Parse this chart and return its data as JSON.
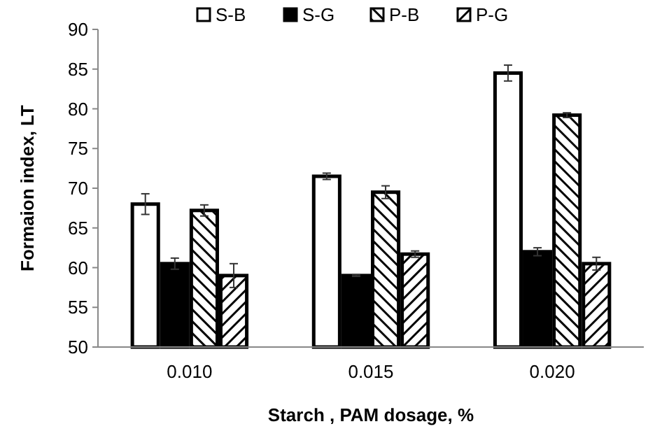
{
  "chart_data": {
    "type": "bar",
    "xlabel": "Starch , PAM dosage, %",
    "ylabel": "Formaion index, LT",
    "categories": [
      "0.010",
      "0.015",
      "0.020"
    ],
    "series": [
      {
        "name": "S-B",
        "color": "#ffffff",
        "values": [
          68,
          71.5,
          84.5
        ],
        "errors": [
          1.3,
          0.4,
          1
        ]
      },
      {
        "name": "S-G",
        "color": "#000000",
        "values": [
          60.5,
          59,
          62
        ],
        "errors": [
          0.7,
          0.1,
          0.5
        ]
      },
      {
        "name": "P-B",
        "color": "#000000",
        "values": [
          67.2,
          69.5,
          79.2
        ],
        "errors": [
          0.7,
          0.8,
          0.3
        ]
      },
      {
        "name": "P-G",
        "color": "#000000",
        "values": [
          59,
          61.7,
          60.5
        ],
        "errors": [
          1.5,
          0.4,
          0.8
        ]
      }
    ],
    "ylim": [
      50,
      90
    ],
    "yticks": [
      50,
      55,
      60,
      65,
      70,
      75,
      80,
      85,
      90
    ],
    "legend": "top",
    "grid": false
  }
}
